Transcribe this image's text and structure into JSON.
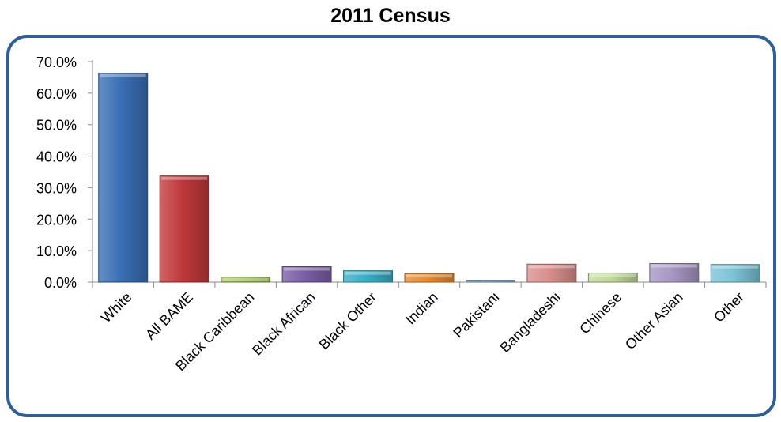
{
  "chart_data": {
    "type": "bar",
    "title": "2011 Census",
    "xlabel": "",
    "ylabel": "",
    "ylim": [
      0,
      70
    ],
    "y_ticks": [
      "0.0%",
      "10.0%",
      "20.0%",
      "30.0%",
      "40.0%",
      "50.0%",
      "60.0%",
      "70.0%"
    ],
    "y_tick_values": [
      0,
      10,
      20,
      30,
      40,
      50,
      60,
      70
    ],
    "grid": false,
    "legend": "none",
    "categories": [
      "White",
      "All BAME",
      "Black Caribbean",
      "Black African",
      "Black Other",
      "Indian",
      "Pakistani",
      "Bangladeshi",
      "Chinese",
      "Other Asian",
      "Other"
    ],
    "values": [
      66.3,
      33.7,
      1.6,
      4.9,
      3.6,
      2.7,
      0.6,
      5.7,
      2.9,
      5.9,
      5.6
    ],
    "colors": [
      "#3a6fb5",
      "#c0393b",
      "#9aba4f",
      "#7b5ea7",
      "#3aaec8",
      "#e88a2e",
      "#8eacd0",
      "#d98e8e",
      "#c3d89a",
      "#a797c4",
      "#7cc3d6"
    ],
    "frame_color": "#2e5f96"
  }
}
